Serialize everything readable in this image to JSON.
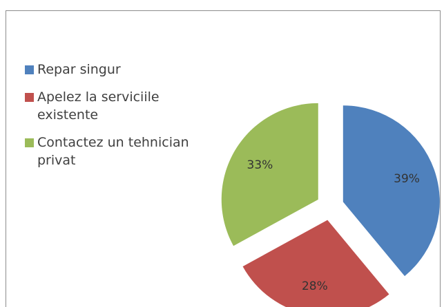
{
  "chart_data": {
    "type": "pie",
    "categories": [
      "Repar singur",
      "Apelez la serviciile existente",
      "Contactez un tehnician privat"
    ],
    "values": [
      39,
      28,
      33
    ],
    "value_labels": [
      "39%",
      "28%",
      "33%"
    ],
    "colors": [
      "#4f81bd",
      "#c0504d",
      "#9bbb59"
    ],
    "legend": "left"
  }
}
